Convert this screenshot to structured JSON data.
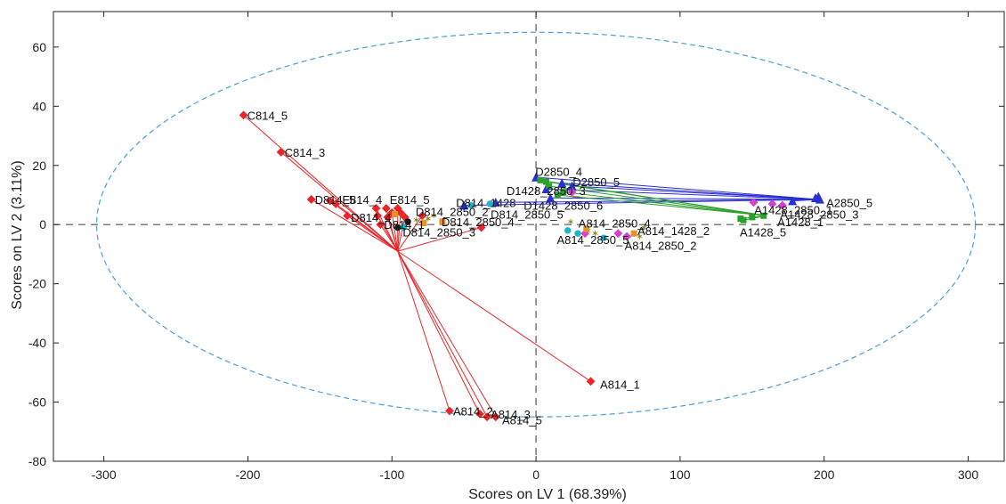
{
  "chart_data": {
    "type": "scatter",
    "xlabel": "Scores on LV 1 (68.39%)",
    "ylabel": "Scores on LV 2 (3.11%)",
    "xlim": [
      -335,
      325
    ],
    "ylim": [
      -80,
      72
    ],
    "xticks": [
      -300,
      -200,
      -100,
      0,
      100,
      200,
      300
    ],
    "yticks": [
      -80,
      -60,
      -40,
      -20,
      0,
      20,
      40,
      60
    ],
    "grid": false,
    "confidence_ellipse": {
      "cx": 0,
      "cy": 0,
      "rx": 305,
      "ry": 65,
      "color": "#4a9fd8",
      "style": "dashed"
    },
    "zero_lines": {
      "color": "#555555",
      "style": "dashed"
    },
    "labels": [
      {
        "text": "C814_5",
        "x": -203,
        "y": 37
      },
      {
        "text": "C814_3",
        "x": -177,
        "y": 24.5
      },
      {
        "text": "D814_5",
        "x": -156,
        "y": 8.5
      },
      {
        "text": "E814_4",
        "x": -137,
        "y": 8.5
      },
      {
        "text": "E814_5",
        "x": -104,
        "y": 8.5
      },
      {
        "text": "D814_4",
        "x": -131,
        "y": 2.5
      },
      {
        "text": "D814_2850_2",
        "x": -86,
        "y": 4.5
      },
      {
        "text": "D814_1",
        "x": -108,
        "y": 0
      },
      {
        "text": "D814_2850_4",
        "x": -68,
        "y": 1
      },
      {
        "text": "D814_2850_3",
        "x": -95,
        "y": -2.5
      },
      {
        "text": "D814_1428",
        "x": -58,
        "y": 7.5
      },
      {
        "text": "D814_2850_5",
        "x": -34,
        "y": 3.5
      },
      {
        "text": "D2850_4",
        "x": -3,
        "y": 18
      },
      {
        "text": "D2850_5",
        "x": 23,
        "y": 14.5
      },
      {
        "text": "D1428_2850_3",
        "x": -23,
        "y": 11.5
      },
      {
        "text": "D1428_2850_6",
        "x": -11,
        "y": 6.5
      },
      {
        "text": "A814_2850_4",
        "x": 27,
        "y": 0.5
      },
      {
        "text": "A814_1428_2",
        "x": 68,
        "y": -2
      },
      {
        "text": "A814_2850_5",
        "x": 12,
        "y": -5
      },
      {
        "text": "A814_2850_2",
        "x": 59,
        "y": -7
      },
      {
        "text": "A1428_1",
        "x": 165,
        "y": 1
      },
      {
        "text": "A1428_5",
        "x": 139,
        "y": -2.5
      },
      {
        "text": "A1428_2850_3",
        "x": 167,
        "y": 3.5
      },
      {
        "text": "A1428_2850_1",
        "x": 149,
        "y": 5
      },
      {
        "text": "A2850_5",
        "x": 199,
        "y": 7.5
      },
      {
        "text": "A814_1",
        "x": 42,
        "y": -54
      },
      {
        "text": "A814_2",
        "x": -60,
        "y": -63
      },
      {
        "text": "A814_3",
        "x": -34,
        "y": -64
      },
      {
        "text": "A814_5",
        "x": -26,
        "y": -66
      }
    ],
    "series": [
      {
        "color": "#e8262a",
        "marker": "diamond",
        "center": [
          -96,
          -9
        ],
        "points": [
          [
            -203,
            37
          ],
          [
            -177,
            24.5
          ],
          [
            -156,
            8.5
          ],
          [
            -143,
            8
          ],
          [
            -139,
            7
          ],
          [
            -131,
            3
          ],
          [
            -111,
            5.5
          ],
          [
            -110,
            3
          ],
          [
            -108,
            0
          ],
          [
            -104,
            5.5
          ],
          [
            -103,
            2.5
          ],
          [
            -100,
            4
          ],
          [
            -96,
            5.5
          ],
          [
            -94,
            4
          ],
          [
            -91,
            2.5
          ],
          [
            -79,
            3
          ],
          [
            -38,
            -1
          ],
          [
            38,
            -53
          ],
          [
            -60,
            -63
          ],
          [
            -39,
            -64
          ],
          [
            -34,
            -65
          ],
          [
            -28,
            -65
          ]
        ]
      },
      {
        "color": "#2a2fd4",
        "marker": "triangle",
        "center": [
          196,
          8.5
        ],
        "points": [
          [
            0,
            16
          ],
          [
            18,
            14
          ],
          [
            25,
            13
          ],
          [
            7,
            12
          ],
          [
            -50,
            6.5
          ],
          [
            -28,
            7.5
          ],
          [
            10,
            9
          ],
          [
            178,
            8
          ],
          [
            194,
            9
          ],
          [
            197,
            8.5
          ],
          [
            196,
            9.5
          ]
        ]
      },
      {
        "color": "#2ca02c",
        "marker": "square",
        "center": [
          160,
          3
        ],
        "points": [
          [
            3,
            15
          ],
          [
            7,
            14.5
          ],
          [
            9,
            13
          ],
          [
            15,
            10
          ],
          [
            19,
            11
          ],
          [
            142,
            2
          ],
          [
            144,
            1.5
          ],
          [
            150,
            2.5
          ],
          [
            158,
            3
          ]
        ]
      },
      {
        "color": "#8a8a2a",
        "marker": "star",
        "points": [
          [
            -83,
            1.5
          ],
          [
            -75,
            2
          ],
          [
            -71,
            3
          ],
          [
            24,
            1
          ],
          [
            36,
            -2
          ],
          [
            41,
            -3
          ],
          [
            64,
            -4
          ],
          [
            72,
            -4
          ],
          [
            75,
            -1
          ]
        ]
      },
      {
        "color": "#d63fd4",
        "marker": "diamond",
        "points": [
          [
            34,
            -3
          ],
          [
            57,
            -3
          ],
          [
            63,
            -4
          ],
          [
            151,
            7.5
          ],
          [
            164,
            7
          ],
          [
            171,
            6.5
          ],
          [
            25,
            11
          ]
        ]
      },
      {
        "color": "#1fb5c9",
        "marker": "circle",
        "points": [
          [
            -45,
            6.5
          ],
          [
            -32,
            7
          ],
          [
            22,
            -2
          ],
          [
            29,
            -3
          ],
          [
            47,
            -4.5
          ],
          [
            -92,
            -1
          ]
        ]
      },
      {
        "color": "#e8902a",
        "marker": "square",
        "points": [
          [
            -78,
            0.5
          ],
          [
            -65,
            1
          ],
          [
            35,
            -1.5
          ],
          [
            68,
            -3
          ],
          [
            -98,
            3.5
          ]
        ]
      },
      {
        "color": "#1a1a1a",
        "marker": "circle",
        "points": [
          [
            -96,
            -1
          ],
          [
            -89,
            1
          ]
        ]
      }
    ]
  }
}
